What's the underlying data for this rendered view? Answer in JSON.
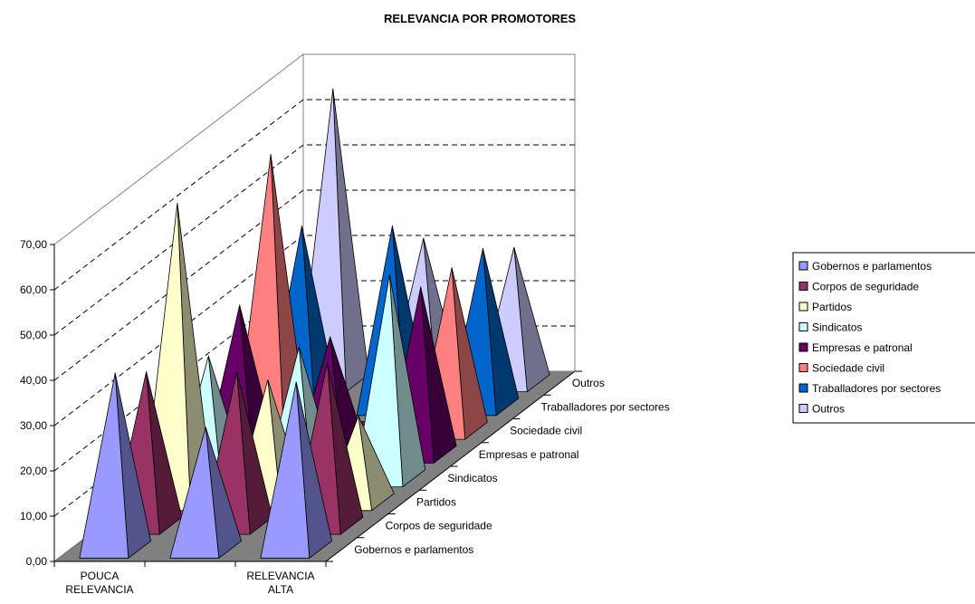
{
  "chart_data": {
    "type": "bar",
    "subtype": "3d-pyramid",
    "title": "RELEVANCIA POR PROMOTORES",
    "categories": [
      "POUCA RELEVANCIA",
      "",
      "RELEVANCIA ALTA"
    ],
    "category_lines": [
      [
        "POUCA",
        "RELEVANCIA"
      ],
      [
        ""
      ],
      [
        "RELEVANCIA",
        "ALTA"
      ]
    ],
    "ylim": [
      0,
      70
    ],
    "yticks": [
      "0,00",
      "10,00",
      "20,00",
      "30,00",
      "40,00",
      "50,00",
      "60,00",
      "70,00"
    ],
    "grid": true,
    "legend_position": "right",
    "series": [
      {
        "name": "Gobernos e parlamentos",
        "color": "#9999FF",
        "values": [
          39,
          27,
          37
        ]
      },
      {
        "name": "Corpos de seguridade",
        "color": "#993366",
        "values": [
          34,
          34,
          36
        ]
      },
      {
        "name": "Partidos",
        "color": "#FFFFCC",
        "values": [
          66,
          27,
          19
        ]
      },
      {
        "name": "Sindicatos",
        "color": "#CCFFFF",
        "values": [
          27,
          29,
          45
        ]
      },
      {
        "name": "Empresas e patronal",
        "color": "#660066",
        "values": [
          33,
          26,
          37
        ]
      },
      {
        "name": "Sociedade civil",
        "color": "#FF8080",
        "values": [
          61,
          2,
          36
        ]
      },
      {
        "name": "Traballadores por sectores",
        "color": "#0066CC",
        "values": [
          40,
          40,
          35
        ]
      },
      {
        "name": "Outros",
        "color": "#CCCCFF",
        "values": [
          65,
          32,
          30
        ]
      }
    ]
  }
}
